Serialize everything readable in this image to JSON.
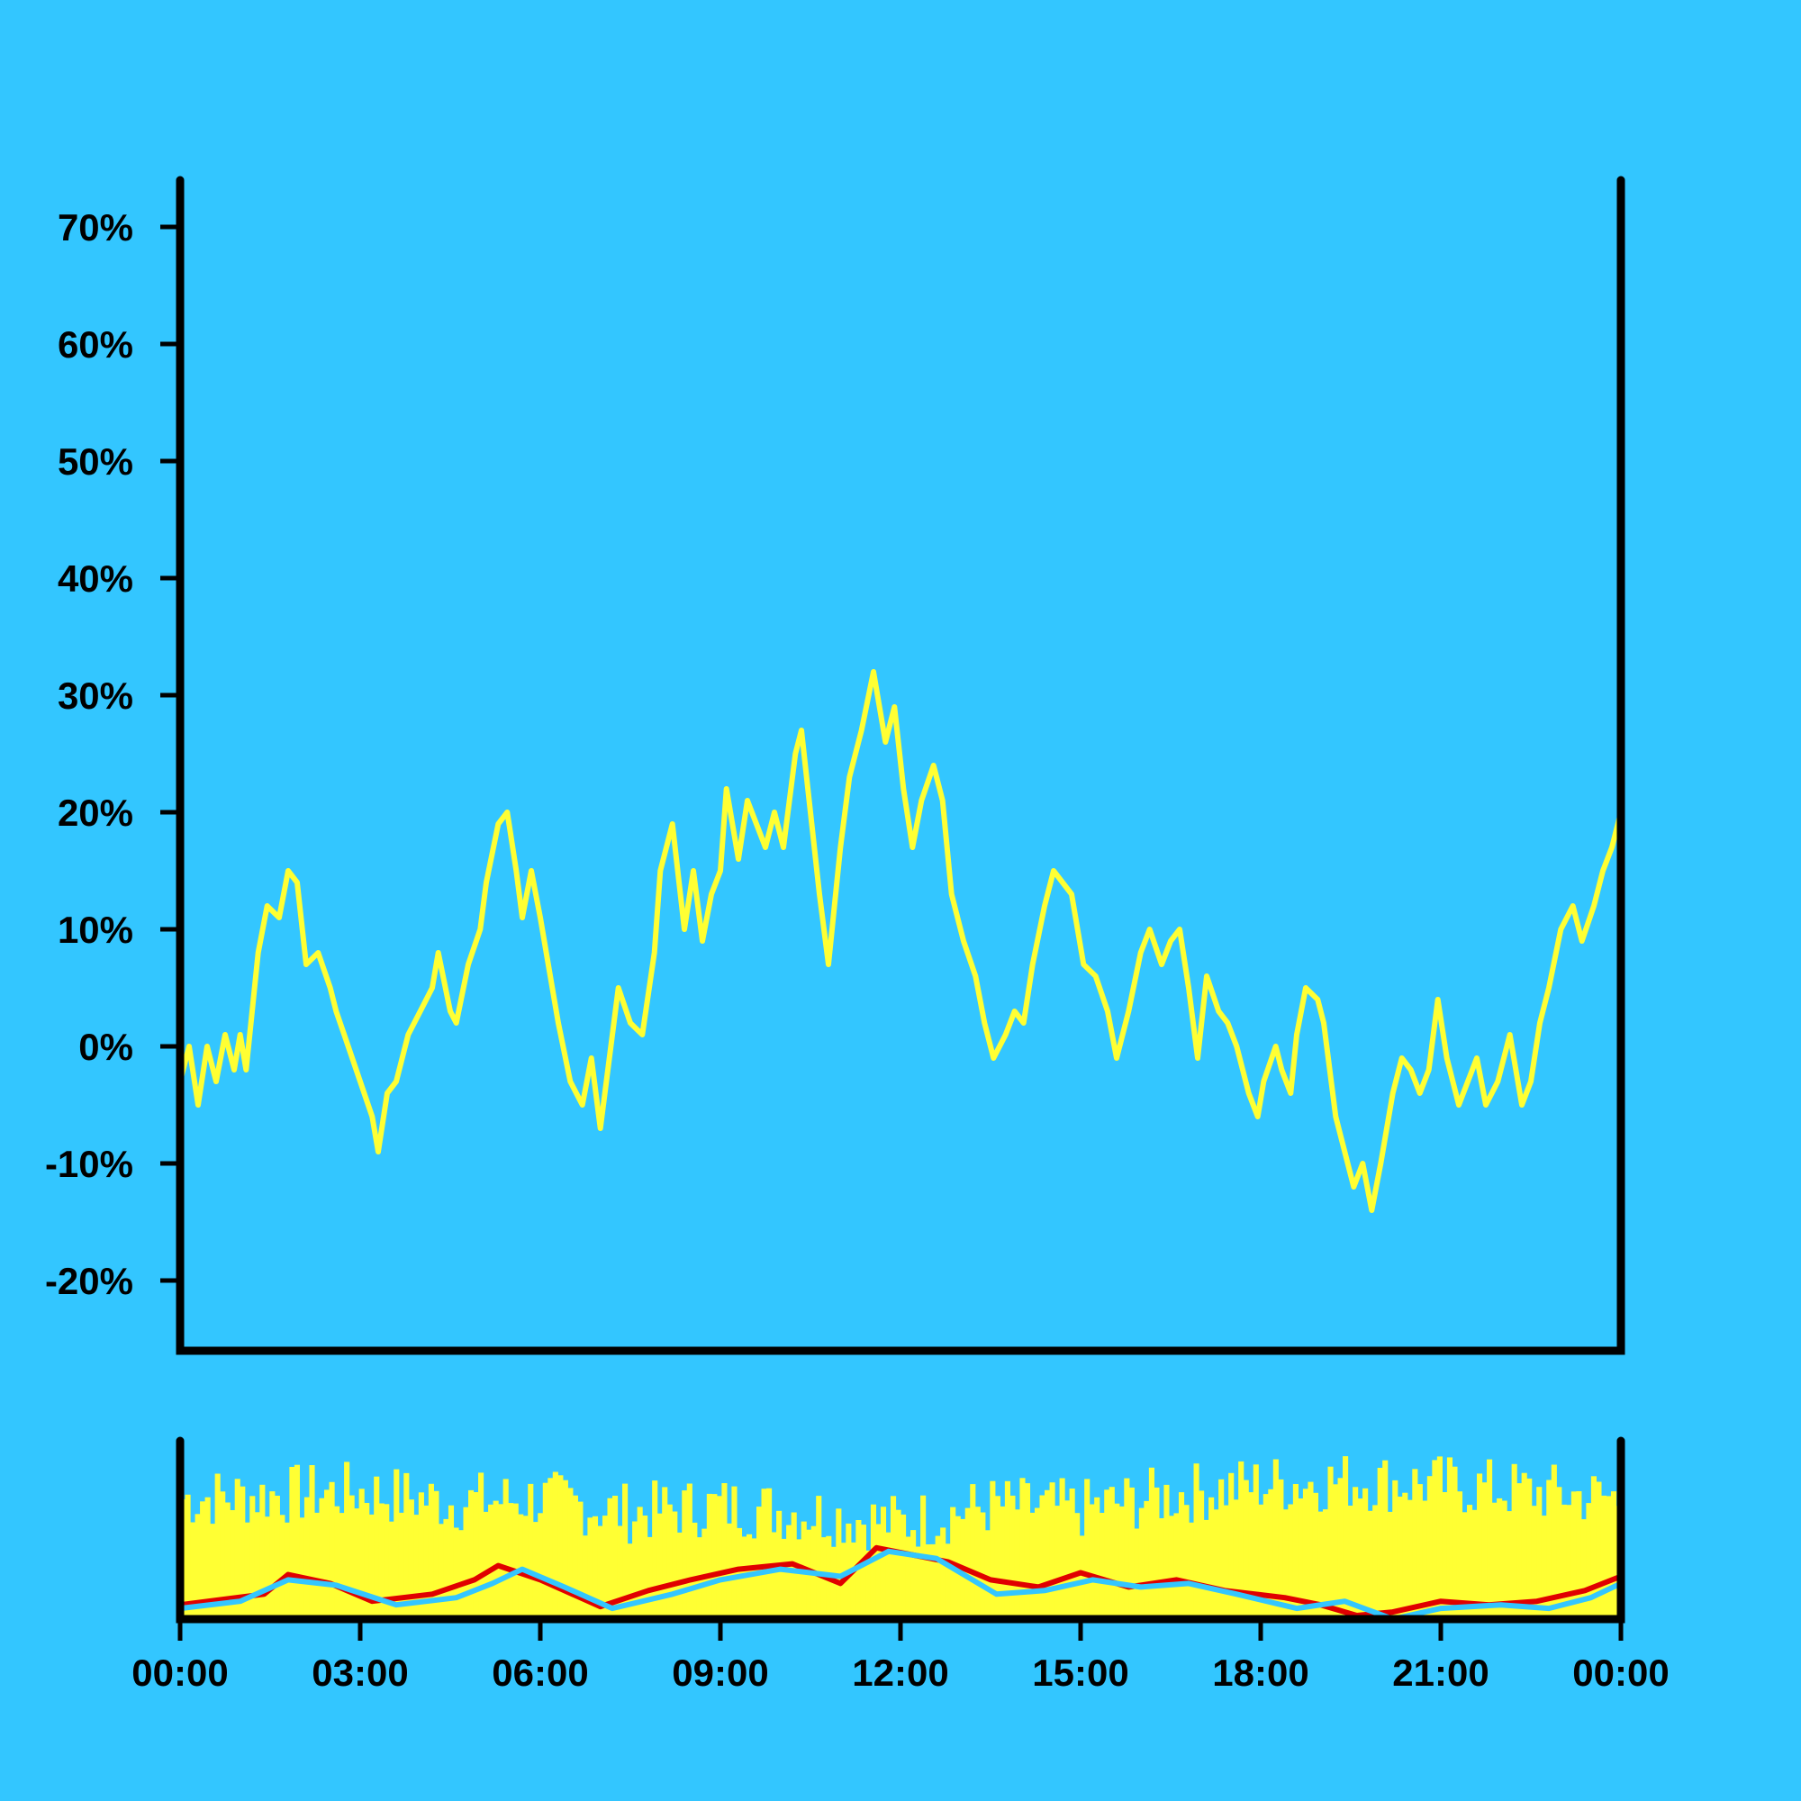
{
  "chart_data": [
    {
      "type": "line",
      "title": "",
      "xlabel": "",
      "ylabel": "",
      "y_unit": "%",
      "ylim": [
        -26,
        74
      ],
      "yticks": [
        -20,
        -10,
        0,
        10,
        20,
        30,
        40,
        50,
        60,
        70
      ],
      "ytick_labels": [
        "-20%",
        "-10%",
        "0%",
        "10%",
        "20%",
        "30%",
        "40%",
        "50%",
        "60%",
        "70%"
      ],
      "xlim_hours": [
        0,
        24
      ],
      "grid": false,
      "legend": "none",
      "series": [
        {
          "color": "#ffff33",
          "points": [
            [
              0.0,
              -3
            ],
            [
              0.15,
              0
            ],
            [
              0.3,
              -5
            ],
            [
              0.45,
              0
            ],
            [
              0.6,
              -3
            ],
            [
              0.75,
              1
            ],
            [
              0.9,
              -2
            ],
            [
              1.0,
              1
            ],
            [
              1.1,
              -2
            ],
            [
              1.3,
              8
            ],
            [
              1.45,
              12
            ],
            [
              1.65,
              11
            ],
            [
              1.8,
              15
            ],
            [
              1.95,
              14
            ],
            [
              2.1,
              7
            ],
            [
              2.3,
              8
            ],
            [
              2.5,
              5
            ],
            [
              2.6,
              3
            ],
            [
              2.8,
              0
            ],
            [
              3.0,
              -3
            ],
            [
              3.2,
              -6
            ],
            [
              3.3,
              -9
            ],
            [
              3.45,
              -4
            ],
            [
              3.6,
              -3
            ],
            [
              3.8,
              1
            ],
            [
              4.0,
              3
            ],
            [
              4.2,
              5
            ],
            [
              4.3,
              8
            ],
            [
              4.5,
              3
            ],
            [
              4.6,
              2
            ],
            [
              4.8,
              7
            ],
            [
              5.0,
              10
            ],
            [
              5.1,
              14
            ],
            [
              5.3,
              19
            ],
            [
              5.45,
              20
            ],
            [
              5.6,
              15
            ],
            [
              5.7,
              11
            ],
            [
              5.85,
              15
            ],
            [
              6.0,
              11
            ],
            [
              6.2,
              5
            ],
            [
              6.3,
              2
            ],
            [
              6.5,
              -3
            ],
            [
              6.7,
              -5
            ],
            [
              6.85,
              -1
            ],
            [
              7.0,
              -7
            ],
            [
              7.15,
              -1
            ],
            [
              7.3,
              5
            ],
            [
              7.5,
              2
            ],
            [
              7.7,
              1
            ],
            [
              7.9,
              8
            ],
            [
              8.0,
              15
            ],
            [
              8.2,
              19
            ],
            [
              8.4,
              10
            ],
            [
              8.55,
              15
            ],
            [
              8.7,
              9
            ],
            [
              8.85,
              13
            ],
            [
              9.0,
              15
            ],
            [
              9.1,
              22
            ],
            [
              9.3,
              16
            ],
            [
              9.45,
              21
            ],
            [
              9.6,
              19
            ],
            [
              9.75,
              17
            ],
            [
              9.9,
              20
            ],
            [
              10.05,
              17
            ],
            [
              10.25,
              25
            ],
            [
              10.35,
              27
            ],
            [
              10.5,
              20
            ],
            [
              10.65,
              13
            ],
            [
              10.8,
              7
            ],
            [
              11.0,
              17
            ],
            [
              11.15,
              23
            ],
            [
              11.35,
              27
            ],
            [
              11.55,
              32
            ],
            [
              11.75,
              26
            ],
            [
              11.9,
              29
            ],
            [
              12.05,
              22
            ],
            [
              12.2,
              17
            ],
            [
              12.35,
              21
            ],
            [
              12.55,
              24
            ],
            [
              12.7,
              21
            ],
            [
              12.85,
              13
            ],
            [
              13.05,
              9
            ],
            [
              13.25,
              6
            ],
            [
              13.4,
              2
            ],
            [
              13.55,
              -1
            ],
            [
              13.75,
              1
            ],
            [
              13.9,
              3
            ],
            [
              14.05,
              2
            ],
            [
              14.2,
              7
            ],
            [
              14.4,
              12
            ],
            [
              14.55,
              15
            ],
            [
              14.7,
              14
            ],
            [
              14.85,
              13
            ],
            [
              15.05,
              7
            ],
            [
              15.25,
              6
            ],
            [
              15.45,
              3
            ],
            [
              15.6,
              -1
            ],
            [
              15.8,
              3
            ],
            [
              16.0,
              8
            ],
            [
              16.15,
              10
            ],
            [
              16.35,
              7
            ],
            [
              16.5,
              9
            ],
            [
              16.65,
              10
            ],
            [
              16.8,
              5
            ],
            [
              16.95,
              -1
            ],
            [
              17.1,
              6
            ],
            [
              17.3,
              3
            ],
            [
              17.45,
              2
            ],
            [
              17.6,
              0
            ],
            [
              17.8,
              -4
            ],
            [
              17.95,
              -6
            ],
            [
              18.05,
              -3
            ],
            [
              18.25,
              0
            ],
            [
              18.35,
              -2
            ],
            [
              18.5,
              -4
            ],
            [
              18.6,
              1
            ],
            [
              18.75,
              5
            ],
            [
              18.95,
              4
            ],
            [
              19.05,
              2
            ],
            [
              19.25,
              -6
            ],
            [
              19.4,
              -9
            ],
            [
              19.55,
              -12
            ],
            [
              19.7,
              -10
            ],
            [
              19.85,
              -14
            ],
            [
              20.0,
              -10
            ],
            [
              20.2,
              -4
            ],
            [
              20.35,
              -1
            ],
            [
              20.5,
              -2
            ],
            [
              20.65,
              -4
            ],
            [
              20.8,
              -2
            ],
            [
              20.95,
              4
            ],
            [
              21.1,
              -1
            ],
            [
              21.3,
              -5
            ],
            [
              21.45,
              -3
            ],
            [
              21.6,
              -1
            ],
            [
              21.75,
              -5
            ],
            [
              21.95,
              -3
            ],
            [
              22.15,
              1
            ],
            [
              22.35,
              -5
            ],
            [
              22.5,
              -3
            ],
            [
              22.65,
              2
            ],
            [
              22.8,
              5
            ],
            [
              23.0,
              10
            ],
            [
              23.2,
              12
            ],
            [
              23.35,
              9
            ],
            [
              23.55,
              12
            ],
            [
              23.7,
              15
            ],
            [
              23.85,
              17
            ],
            [
              24.0,
              20
            ]
          ]
        }
      ]
    },
    {
      "type": "bar",
      "title": "",
      "xlabel": "",
      "ylabel": "",
      "xtick_labels": [
        "00:00",
        "03:00",
        "06:00",
        "09:00",
        "12:00",
        "15:00",
        "18:00",
        "21:00",
        "00:00"
      ],
      "xtick_hours": [
        0,
        3,
        6,
        9,
        12,
        15,
        18,
        21,
        24
      ],
      "ylim": [
        0,
        1
      ],
      "grid": false,
      "legend": "none",
      "series": [
        {
          "color": "#ffff33",
          "bar_count": 290,
          "envelope": [
            [
              0,
              0.7
            ],
            [
              1.5,
              0.72
            ],
            [
              3,
              0.74
            ],
            [
              4.5,
              0.68
            ],
            [
              6,
              0.7
            ],
            [
              7.5,
              0.62
            ],
            [
              9,
              0.66
            ],
            [
              10.5,
              0.62
            ],
            [
              12,
              0.56
            ],
            [
              13.5,
              0.66
            ],
            [
              15,
              0.64
            ],
            [
              16.5,
              0.72
            ],
            [
              18,
              0.78
            ],
            [
              19.5,
              0.8
            ],
            [
              21,
              0.78
            ],
            [
              22.5,
              0.74
            ],
            [
              24,
              0.7
            ]
          ]
        },
        {
          "color": "#e00000",
          "points": [
            [
              0,
              0.08
            ],
            [
              1.4,
              0.14
            ],
            [
              1.8,
              0.25
            ],
            [
              2.5,
              0.2
            ],
            [
              3.2,
              0.1
            ],
            [
              4.2,
              0.14
            ],
            [
              4.9,
              0.22
            ],
            [
              5.3,
              0.3
            ],
            [
              6.0,
              0.22
            ],
            [
              7.0,
              0.07
            ],
            [
              7.8,
              0.16
            ],
            [
              8.5,
              0.22
            ],
            [
              9.3,
              0.28
            ],
            [
              10.2,
              0.31
            ],
            [
              11.0,
              0.2
            ],
            [
              11.6,
              0.4
            ],
            [
              12.2,
              0.36
            ],
            [
              12.8,
              0.32
            ],
            [
              13.5,
              0.22
            ],
            [
              14.3,
              0.18
            ],
            [
              15.0,
              0.26
            ],
            [
              15.8,
              0.18
            ],
            [
              16.6,
              0.22
            ],
            [
              17.4,
              0.16
            ],
            [
              18.4,
              0.12
            ],
            [
              19.0,
              0.08
            ],
            [
              19.6,
              0.02
            ],
            [
              20.2,
              0.04
            ],
            [
              21.0,
              0.1
            ],
            [
              21.8,
              0.08
            ],
            [
              22.6,
              0.1
            ],
            [
              23.4,
              0.16
            ],
            [
              24,
              0.24
            ]
          ]
        },
        {
          "color": "#33c6ff",
          "points": [
            [
              0,
              0.06
            ],
            [
              1.0,
              0.1
            ],
            [
              1.8,
              0.22
            ],
            [
              2.6,
              0.19
            ],
            [
              3.6,
              0.08
            ],
            [
              4.6,
              0.12
            ],
            [
              5.2,
              0.2
            ],
            [
              5.7,
              0.28
            ],
            [
              6.4,
              0.18
            ],
            [
              7.2,
              0.06
            ],
            [
              8.2,
              0.14
            ],
            [
              9.0,
              0.22
            ],
            [
              10.0,
              0.28
            ],
            [
              11.0,
              0.24
            ],
            [
              11.8,
              0.38
            ],
            [
              12.6,
              0.34
            ],
            [
              13.6,
              0.14
            ],
            [
              14.4,
              0.16
            ],
            [
              15.2,
              0.22
            ],
            [
              16.0,
              0.18
            ],
            [
              16.8,
              0.2
            ],
            [
              17.6,
              0.14
            ],
            [
              18.6,
              0.06
            ],
            [
              19.4,
              0.1
            ],
            [
              20.2,
              0.0
            ],
            [
              21.0,
              0.06
            ],
            [
              22.0,
              0.08
            ],
            [
              22.8,
              0.06
            ],
            [
              23.5,
              0.12
            ],
            [
              24,
              0.2
            ]
          ]
        }
      ]
    }
  ]
}
